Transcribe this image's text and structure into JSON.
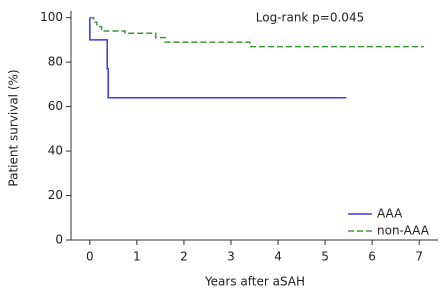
{
  "chart_data": {
    "type": "line",
    "annotation": "Log-rank p=0.045",
    "x_label": "Years after aSAH",
    "y_label": "Patient survival (%)",
    "xlim": [
      -0.4,
      7.4
    ],
    "ylim": [
      0,
      103
    ],
    "xticks": [
      0,
      1,
      2,
      3,
      4,
      5,
      6,
      7
    ],
    "yticks": [
      0,
      20,
      40,
      60,
      80,
      100
    ],
    "legend": "lower right",
    "series": [
      {
        "name": "AAA",
        "color": "#3a3ad6",
        "dash": false,
        "x": [
          0,
          0,
          0.37,
          0.37,
          0.39,
          0.39,
          5.45
        ],
        "values": [
          100,
          90,
          90,
          77,
          77,
          64,
          64
        ]
      },
      {
        "name": "non-AAA",
        "color": "#3a9a35",
        "dash": true,
        "x": [
          0,
          0.08,
          0.08,
          0.15,
          0.15,
          0.25,
          0.25,
          0.75,
          0.75,
          1.4,
          1.4,
          1.6,
          1.6,
          3.4,
          3.4,
          7.1
        ],
        "values": [
          100,
          100,
          98,
          98,
          96,
          96,
          94,
          94,
          93,
          93,
          91,
          91,
          89,
          89,
          87,
          87
        ]
      }
    ]
  }
}
